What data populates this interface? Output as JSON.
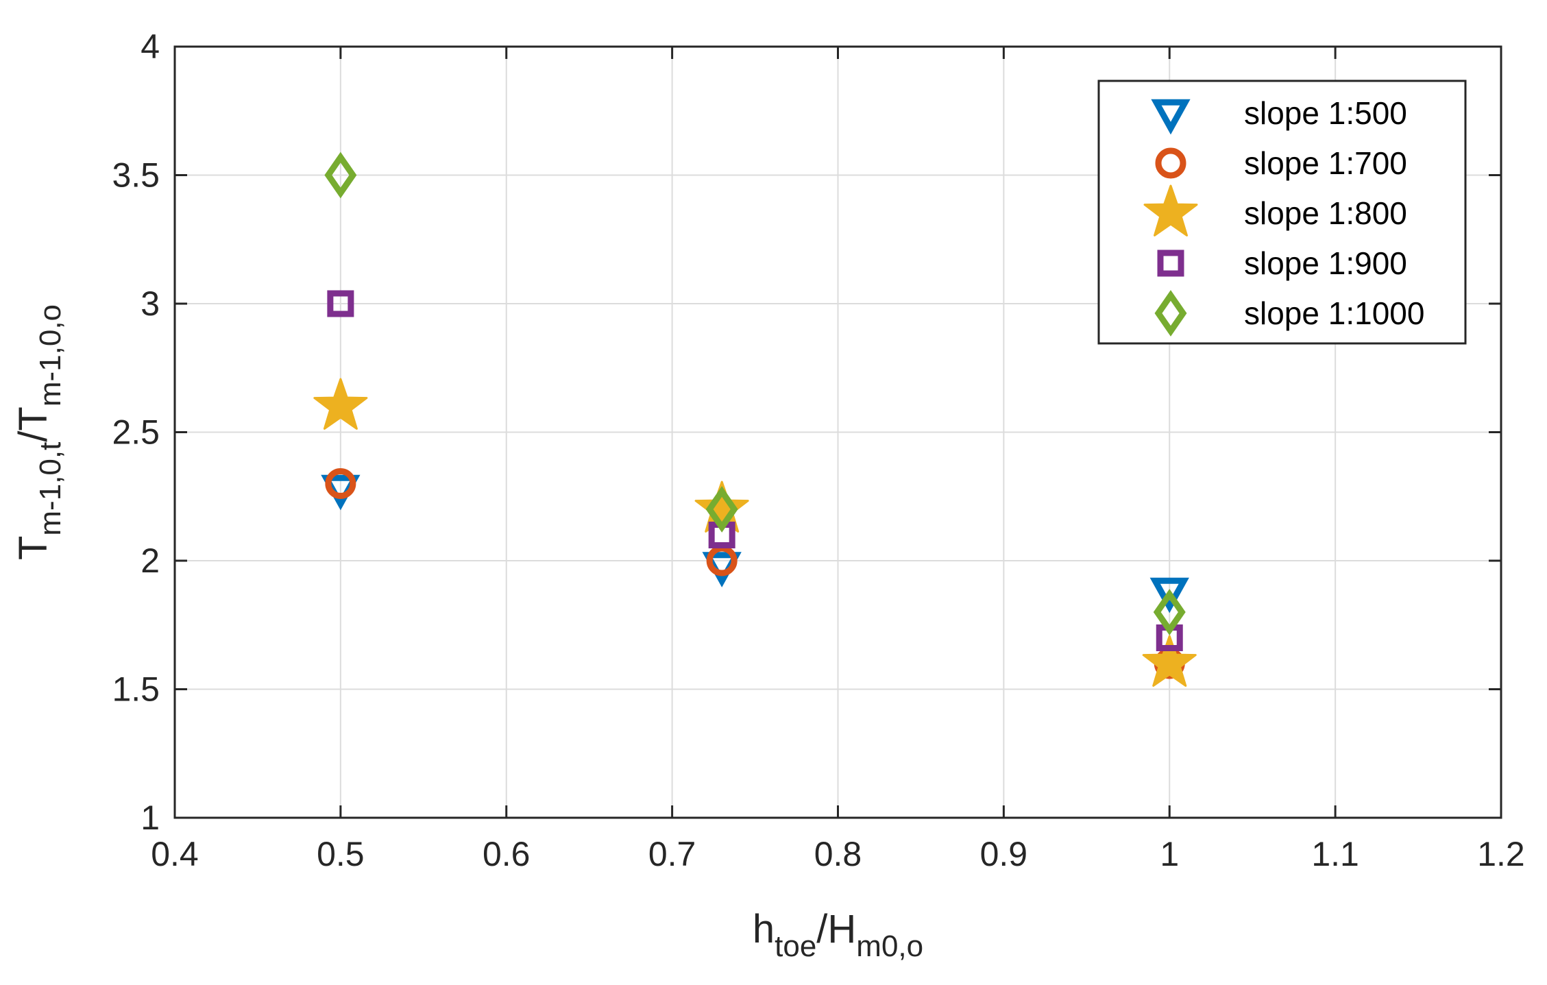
{
  "chart_data": {
    "type": "scatter",
    "title": "",
    "xlabel": {
      "main": "h",
      "sub": "toe",
      "main2": "/H",
      "sub2": "m0,o"
    },
    "ylabel": {
      "main": "T",
      "sub": "m-1,0,t",
      "main2": "/T",
      "sub2": "m-1,0,o"
    },
    "xlim": [
      0.4,
      1.2
    ],
    "ylim": [
      1,
      4
    ],
    "xticks": [
      0.4,
      0.5,
      0.6,
      0.7,
      0.8,
      0.9,
      1.0,
      1.1,
      1.2
    ],
    "xtick_labels": [
      "0.4",
      "0.5",
      "0.6",
      "0.7",
      "0.8",
      "0.9",
      "1",
      "1.1",
      "1.2"
    ],
    "yticks": [
      1,
      1.5,
      2,
      2.5,
      3,
      3.5,
      4
    ],
    "ytick_labels": [
      "1",
      "1.5",
      "2",
      "2.5",
      "3",
      "3.5",
      "4"
    ],
    "grid": true,
    "legend_position": "top-right",
    "series": [
      {
        "name": "slope 1:500",
        "marker": "triangle-down",
        "color": "#0072BD",
        "x": [
          0.5,
          0.73,
          1.0
        ],
        "y": [
          2.28,
          1.98,
          1.88
        ]
      },
      {
        "name": "slope 1:700",
        "marker": "circle",
        "color": "#D95319",
        "x": [
          0.5,
          0.73,
          1.0
        ],
        "y": [
          2.3,
          2.0,
          1.6
        ]
      },
      {
        "name": "slope 1:800",
        "marker": "star",
        "color": "#EDB120",
        "x": [
          0.5,
          0.73,
          1.0
        ],
        "y": [
          2.6,
          2.2,
          1.6
        ]
      },
      {
        "name": "slope 1:900",
        "marker": "square",
        "color": "#7E2F8E",
        "x": [
          0.5,
          0.73,
          1.0
        ],
        "y": [
          3.0,
          2.1,
          1.7
        ]
      },
      {
        "name": "slope 1:1000",
        "marker": "diamond",
        "color": "#77AC30",
        "x": [
          0.5,
          0.73,
          1.0
        ],
        "y": [
          3.5,
          2.2,
          1.8
        ]
      }
    ]
  }
}
